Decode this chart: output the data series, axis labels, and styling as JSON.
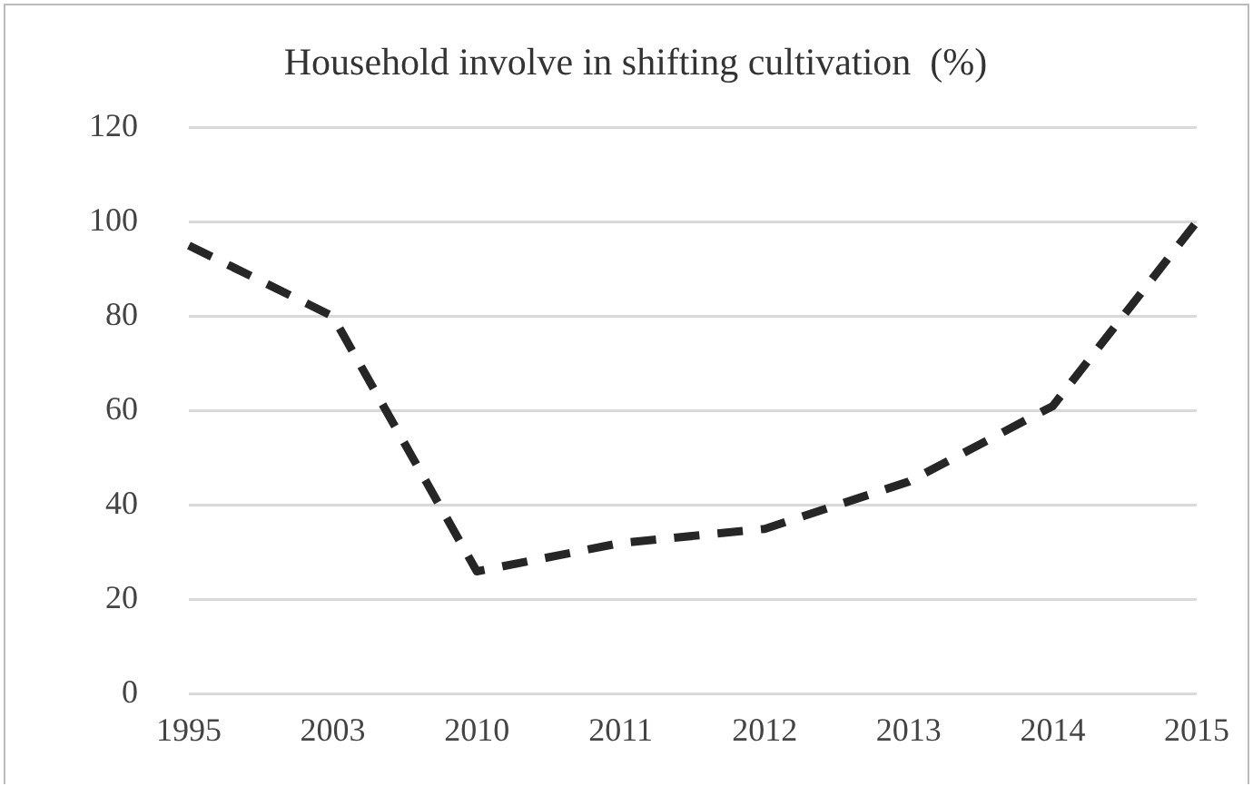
{
  "chart_data": {
    "type": "line",
    "title": "Household involve in shifting cultivation  (%)",
    "categories": [
      "1995",
      "2003",
      "2010",
      "2011",
      "2012",
      "2013",
      "2014",
      "2015"
    ],
    "series": [
      {
        "color": "#262626",
        "values": [
          95,
          80,
          26,
          32,
          35,
          45,
          61,
          100
        ]
      }
    ],
    "ylim": [
      0,
      120
    ],
    "yticks": [
      0,
      20,
      40,
      60,
      80,
      100,
      120
    ],
    "grid": "y",
    "legend": false,
    "marker": "none",
    "line_style": "dashed"
  }
}
